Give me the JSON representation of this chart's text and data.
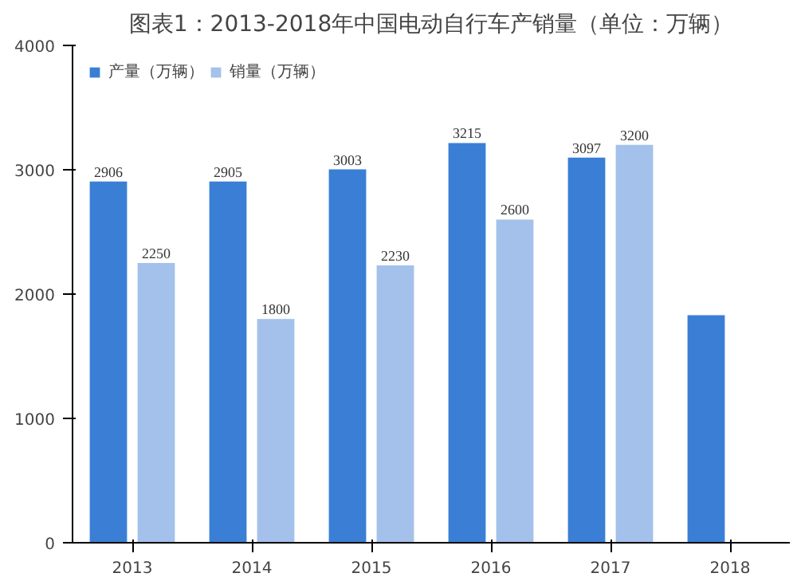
{
  "chart_data": {
    "type": "bar",
    "title": "图表1：2013-2018年中国电动自行车产销量（单位：万辆）",
    "categories": [
      "2013",
      "2014",
      "2015",
      "2016",
      "2017",
      "2018"
    ],
    "series": [
      {
        "name": "产量（万辆）",
        "color": "#3a7fd5",
        "values": [
          2906,
          2905,
          3003,
          3215,
          3097,
          1830
        ],
        "value_labels": [
          "2906",
          "2905",
          "3003",
          "3215",
          "3097",
          null
        ]
      },
      {
        "name": "销量（万辆）",
        "color": "#a3c1ea",
        "values": [
          2250,
          1800,
          2230,
          2600,
          3200,
          null
        ],
        "value_labels": [
          "2250",
          "1800",
          "2230",
          "2600",
          "3200",
          null
        ]
      }
    ],
    "ylim": [
      0,
      4000
    ],
    "yticks": [
      0,
      1000,
      2000,
      3000,
      4000
    ],
    "grid": false,
    "legend": "top left"
  }
}
